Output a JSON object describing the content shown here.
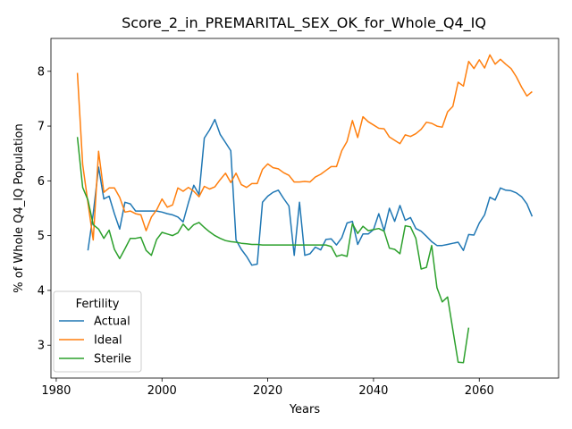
{
  "chart_data": {
    "type": "line",
    "title": "Score_2_in_PREMARITAL_SEX_OK_for_Whole_Q4_IQ",
    "xlabel": "Years",
    "ylabel": "% of Whole Q4_IQ Population",
    "xlim": [
      1979,
      2075
    ],
    "ylim": [
      2.4,
      8.6
    ],
    "xticks": [
      1980,
      2000,
      2020,
      2040,
      2060
    ],
    "yticks": [
      3,
      4,
      5,
      6,
      7,
      8
    ],
    "grid": false,
    "legend": {
      "title": "Fertility",
      "placement": "lower-left"
    },
    "series": [
      {
        "name": "Actual",
        "color": "#1f77b4",
        "x": [
          1986,
          1987,
          1988,
          1989,
          1990,
          1991,
          1992,
          1993,
          1994,
          1995,
          1996,
          1997,
          1998,
          1999,
          2000,
          2001,
          2002,
          2003,
          2004,
          2005,
          2006,
          2007,
          2008,
          2009,
          2010,
          2011,
          2012,
          2013,
          2014,
          2015,
          2016,
          2017,
          2018,
          2019,
          2020,
          2021,
          2022,
          2023,
          2024,
          2025,
          2026,
          2027,
          2028,
          2029,
          2030,
          2031,
          2032,
          2033,
          2034,
          2035,
          2036,
          2037,
          2038,
          2039,
          2040,
          2041,
          2042,
          2043,
          2044,
          2045,
          2046,
          2047,
          2048,
          2049,
          2050,
          2051,
          2052,
          2053,
          2054,
          2055,
          2056,
          2057,
          2058,
          2059,
          2060,
          2061,
          2062,
          2063,
          2064,
          2065,
          2066,
          2067,
          2068,
          2069,
          2070
        ],
        "values": [
          4.73,
          5.4,
          6.25,
          5.67,
          5.72,
          5.4,
          5.12,
          5.61,
          5.58,
          5.45,
          5.45,
          5.45,
          5.45,
          5.45,
          5.43,
          5.4,
          5.38,
          5.34,
          5.25,
          5.6,
          5.92,
          5.75,
          6.78,
          6.93,
          7.12,
          6.85,
          6.7,
          6.55,
          4.92,
          4.75,
          4.62,
          4.46,
          4.48,
          5.61,
          5.72,
          5.79,
          5.83,
          5.68,
          5.54,
          4.64,
          5.61,
          4.64,
          4.67,
          4.79,
          4.74,
          4.93,
          4.94,
          4.83,
          4.96,
          5.23,
          5.26,
          4.84,
          5.03,
          5.03,
          5.11,
          5.4,
          5.09,
          5.5,
          5.26,
          5.55,
          5.28,
          5.33,
          5.13,
          5.08,
          4.99,
          4.89,
          4.82,
          4.82,
          4.84,
          4.86,
          4.88,
          4.73,
          5.02,
          5.01,
          5.23,
          5.38,
          5.7,
          5.65,
          5.87,
          5.83,
          5.82,
          5.78,
          5.71,
          5.58,
          5.35
        ]
      },
      {
        "name": "Ideal",
        "color": "#ff7f0e",
        "x": [
          1984,
          1985,
          1986,
          1987,
          1988,
          1989,
          1990,
          1991,
          1992,
          1993,
          1994,
          1995,
          1996,
          1997,
          1998,
          1999,
          2000,
          2001,
          2002,
          2003,
          2004,
          2005,
          2006,
          2007,
          2008,
          2009,
          2010,
          2011,
          2012,
          2013,
          2014,
          2015,
          2016,
          2017,
          2018,
          2019,
          2020,
          2021,
          2022,
          2023,
          2024,
          2025,
          2026,
          2027,
          2028,
          2029,
          2030,
          2031,
          2032,
          2033,
          2034,
          2035,
          2036,
          2037,
          2038,
          2039,
          2040,
          2041,
          2042,
          2043,
          2044,
          2045,
          2046,
          2047,
          2048,
          2049,
          2050,
          2051,
          2052,
          2053,
          2054,
          2055,
          2056,
          2057,
          2058,
          2059,
          2060,
          2061,
          2062,
          2063,
          2064,
          2065,
          2066,
          2067,
          2068,
          2069,
          2070
        ],
        "values": [
          7.97,
          6.3,
          5.6,
          4.92,
          6.54,
          5.79,
          5.87,
          5.87,
          5.7,
          5.43,
          5.45,
          5.4,
          5.38,
          5.09,
          5.34,
          5.47,
          5.67,
          5.52,
          5.56,
          5.87,
          5.81,
          5.88,
          5.81,
          5.71,
          5.9,
          5.85,
          5.89,
          6.02,
          6.14,
          5.97,
          6.14,
          5.93,
          5.88,
          5.95,
          5.95,
          6.21,
          6.31,
          6.24,
          6.22,
          6.15,
          6.1,
          5.98,
          5.98,
          5.99,
          5.98,
          6.07,
          6.12,
          6.19,
          6.26,
          6.26,
          6.55,
          6.72,
          7.1,
          6.79,
          7.17,
          7.08,
          7.02,
          6.96,
          6.95,
          6.8,
          6.74,
          6.68,
          6.84,
          6.81,
          6.86,
          6.94,
          7.07,
          7.05,
          7.0,
          6.98,
          7.26,
          7.36,
          7.8,
          7.73,
          8.18,
          8.05,
          8.21,
          8.06,
          8.3,
          8.13,
          8.22,
          8.13,
          8.05,
          7.9,
          7.71,
          7.55,
          7.63
        ]
      },
      {
        "name": "Sterile",
        "color": "#2ca02c",
        "x": [
          1984,
          1985,
          1986,
          1987,
          1988,
          1989,
          1990,
          1991,
          1992,
          1993,
          1994,
          1995,
          1996,
          1997,
          1998,
          1999,
          2000,
          2001,
          2002,
          2003,
          2004,
          2005,
          2006,
          2007,
          2008,
          2009,
          2010,
          2011,
          2012,
          2013,
          2014,
          2015,
          2016,
          2017,
          2018,
          2019,
          2020,
          2021,
          2022,
          2023,
          2024,
          2025,
          2026,
          2027,
          2028,
          2029,
          2030,
          2031,
          2032,
          2033,
          2034,
          2035,
          2036,
          2037,
          2038,
          2039,
          2040,
          2041,
          2042,
          2043,
          2044,
          2045,
          2046,
          2047,
          2048,
          2049,
          2050,
          2051,
          2052,
          2053,
          2054,
          2055,
          2056,
          2057,
          2058
        ],
        "values": [
          6.8,
          5.88,
          5.65,
          5.2,
          5.12,
          4.95,
          5.1,
          4.75,
          4.58,
          4.76,
          4.95,
          4.95,
          4.97,
          4.73,
          4.64,
          4.93,
          5.06,
          5.03,
          5.0,
          5.05,
          5.21,
          5.1,
          5.2,
          5.24,
          5.15,
          5.07,
          5.0,
          4.95,
          4.91,
          4.89,
          4.88,
          4.86,
          4.85,
          4.84,
          4.84,
          4.83,
          4.83,
          4.83,
          4.83,
          4.83,
          4.83,
          4.83,
          4.83,
          4.83,
          4.83,
          4.83,
          4.83,
          4.83,
          4.8,
          4.62,
          4.65,
          4.62,
          5.22,
          5.04,
          5.17,
          5.09,
          5.11,
          5.13,
          5.08,
          4.77,
          4.75,
          4.67,
          5.18,
          5.16,
          4.95,
          4.39,
          4.42,
          4.82,
          4.05,
          3.79,
          3.88,
          3.28,
          2.69,
          2.68,
          3.32
        ]
      }
    ]
  }
}
